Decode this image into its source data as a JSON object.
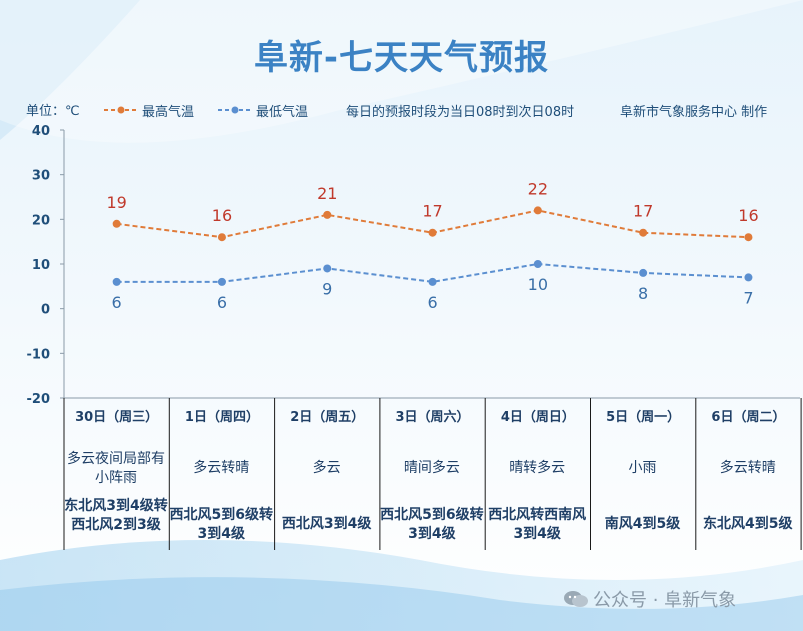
{
  "title": "阜新-七天天气预报",
  "unit_label": "单位：℃",
  "legend": {
    "high": "最高气温",
    "low": "最低气温"
  },
  "note": "每日的预报时段为当日08时到次日08时",
  "maker": "阜新市气象服务中心 制作",
  "colors": {
    "high": "#e07b39",
    "low": "#5b8fd0",
    "title": "#3b82c4",
    "text": "#1f4e79"
  },
  "chart_data": {
    "type": "line",
    "title": "阜新-七天天气预报",
    "ylabel": "单位：℃",
    "ylim": [
      -20,
      40
    ],
    "yticks": [
      "40",
      "30",
      "20",
      "10",
      "0",
      "-10",
      "-20"
    ],
    "categories": [
      "30日（周三）",
      "1日（周四）",
      "2日（周五）",
      "3日（周六）",
      "4日（周日）",
      "5日（周一）",
      "6日（周二）"
    ],
    "series": [
      {
        "name": "最高气温",
        "values": [
          19,
          16,
          21,
          17,
          22,
          17,
          16
        ]
      },
      {
        "name": "最低气温",
        "values": [
          6,
          6,
          9,
          6,
          10,
          8,
          7
        ]
      }
    ]
  },
  "weather": [
    "多云夜间局部有小阵雨",
    "多云转晴",
    "多云",
    "晴间多云",
    "晴转多云",
    "小雨",
    "多云转晴"
  ],
  "wind": [
    "东北风3到4级转西北风2到3级",
    "西北风5到6级转3到4级",
    "西北风3到4级",
    "西北风5到6级转3到4级",
    "西北风转西南风3到4级",
    "南风4到5级",
    "东北风4到5级"
  ],
  "watermark": "公众号 · 阜新气象"
}
